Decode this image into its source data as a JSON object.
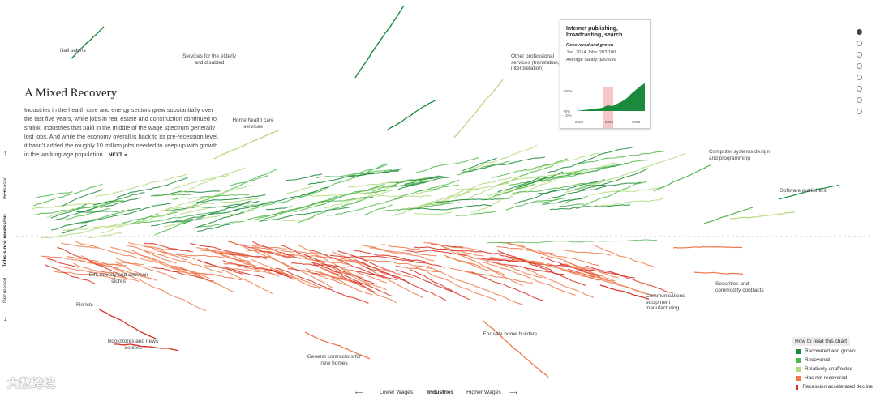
{
  "intro": {
    "title": "A Mixed Recovery",
    "body": "Industries in the health care and energy sectors grew substantially over the last five years, while jobs in real estate and construction continued to shrink. Industries that paid in the middle of the wage spectrum generally lost jobs. And while the economy overall is back to its pre-recession level, it hasn’t added the roughly 10 million jobs needed to keep up with growth in the working-age population.",
    "next_label": "NEXT »"
  },
  "y_axis": {
    "label": "Jobs since recession",
    "up_label": "Increased",
    "down_label": "Decreased"
  },
  "x_axis": {
    "label": "Industries",
    "left_label": "Lower Wages",
    "right_label": "Higher Wages"
  },
  "nav_dots": {
    "count": 8,
    "active": 0
  },
  "colors": {
    "recovered_and_grown": "#1a8a3c",
    "recovered": "#52b84e",
    "relatively_unaffected": "#b3da7e",
    "has_not_recovered": "#ee7a4b",
    "recession_accelerated_decline": "#d62d21"
  },
  "tooltip": {
    "title": "Internet publishing, broadcasting, search",
    "category": "Recovered and grown",
    "jobs_line": "Jan. 2014 Jobs: 203,100",
    "salary_line": "Average Salary: $80,656",
    "y_ticks": [
      "+70%",
      "+0%",
      "-10%"
    ],
    "x_ticks": [
      "2004",
      "2008",
      "2013"
    ]
  },
  "legend": {
    "title": "How to read this chart",
    "items": [
      {
        "label": "Recovered and grown",
        "color": "#1a8a3c"
      },
      {
        "label": "Recovered",
        "color": "#52b84e"
      },
      {
        "label": "Relatively unaffected",
        "color": "#b3da7e"
      },
      {
        "label": "Has not recovered",
        "color": "#ee7a4b"
      },
      {
        "label": "Recession accelerated decline",
        "color": "#d62d21"
      }
    ]
  },
  "annotations": {
    "nail_salons": "Nail salons",
    "services_elderly": "Services for the elderly and disabled",
    "other_professional": "Other professional services (translation, interpretation)",
    "home_health": "Home health care services",
    "computer_systems": "Computer systems design and programming",
    "software_publishers": "Software publishers",
    "gift_stores": "Gift, novelty and souvenir stores",
    "florists": "Florists",
    "bookstores": "Bookstores and news dealers",
    "general_contractors": "General contractors for new homes",
    "for_sale_builders": "For-sale home builders",
    "communications_equipment": "Communications equipment manufacturing",
    "securities": "Securities and commodity contracts"
  },
  "watermark": "大数跨境",
  "chart_data": {
    "type": "line",
    "x_axis_label": "Industries",
    "x_direction": [
      "Lower Wages",
      "Higher Wages"
    ],
    "y_label": "Jobs since recession",
    "categories": [
      "Recovered and grown",
      "Recovered",
      "Relatively unaffected",
      "Has not recovered",
      "Recession accelerated decline"
    ],
    "baseline": "pre-recession level",
    "highlight": {
      "name": "Internet publishing, broadcasting, search",
      "category": "Recovered and grown",
      "jobs_jan_2014": 203100,
      "average_salary": 80656,
      "x_range": [
        2004,
        2013
      ],
      "y_range_pct": [
        -10,
        70
      ]
    }
  }
}
